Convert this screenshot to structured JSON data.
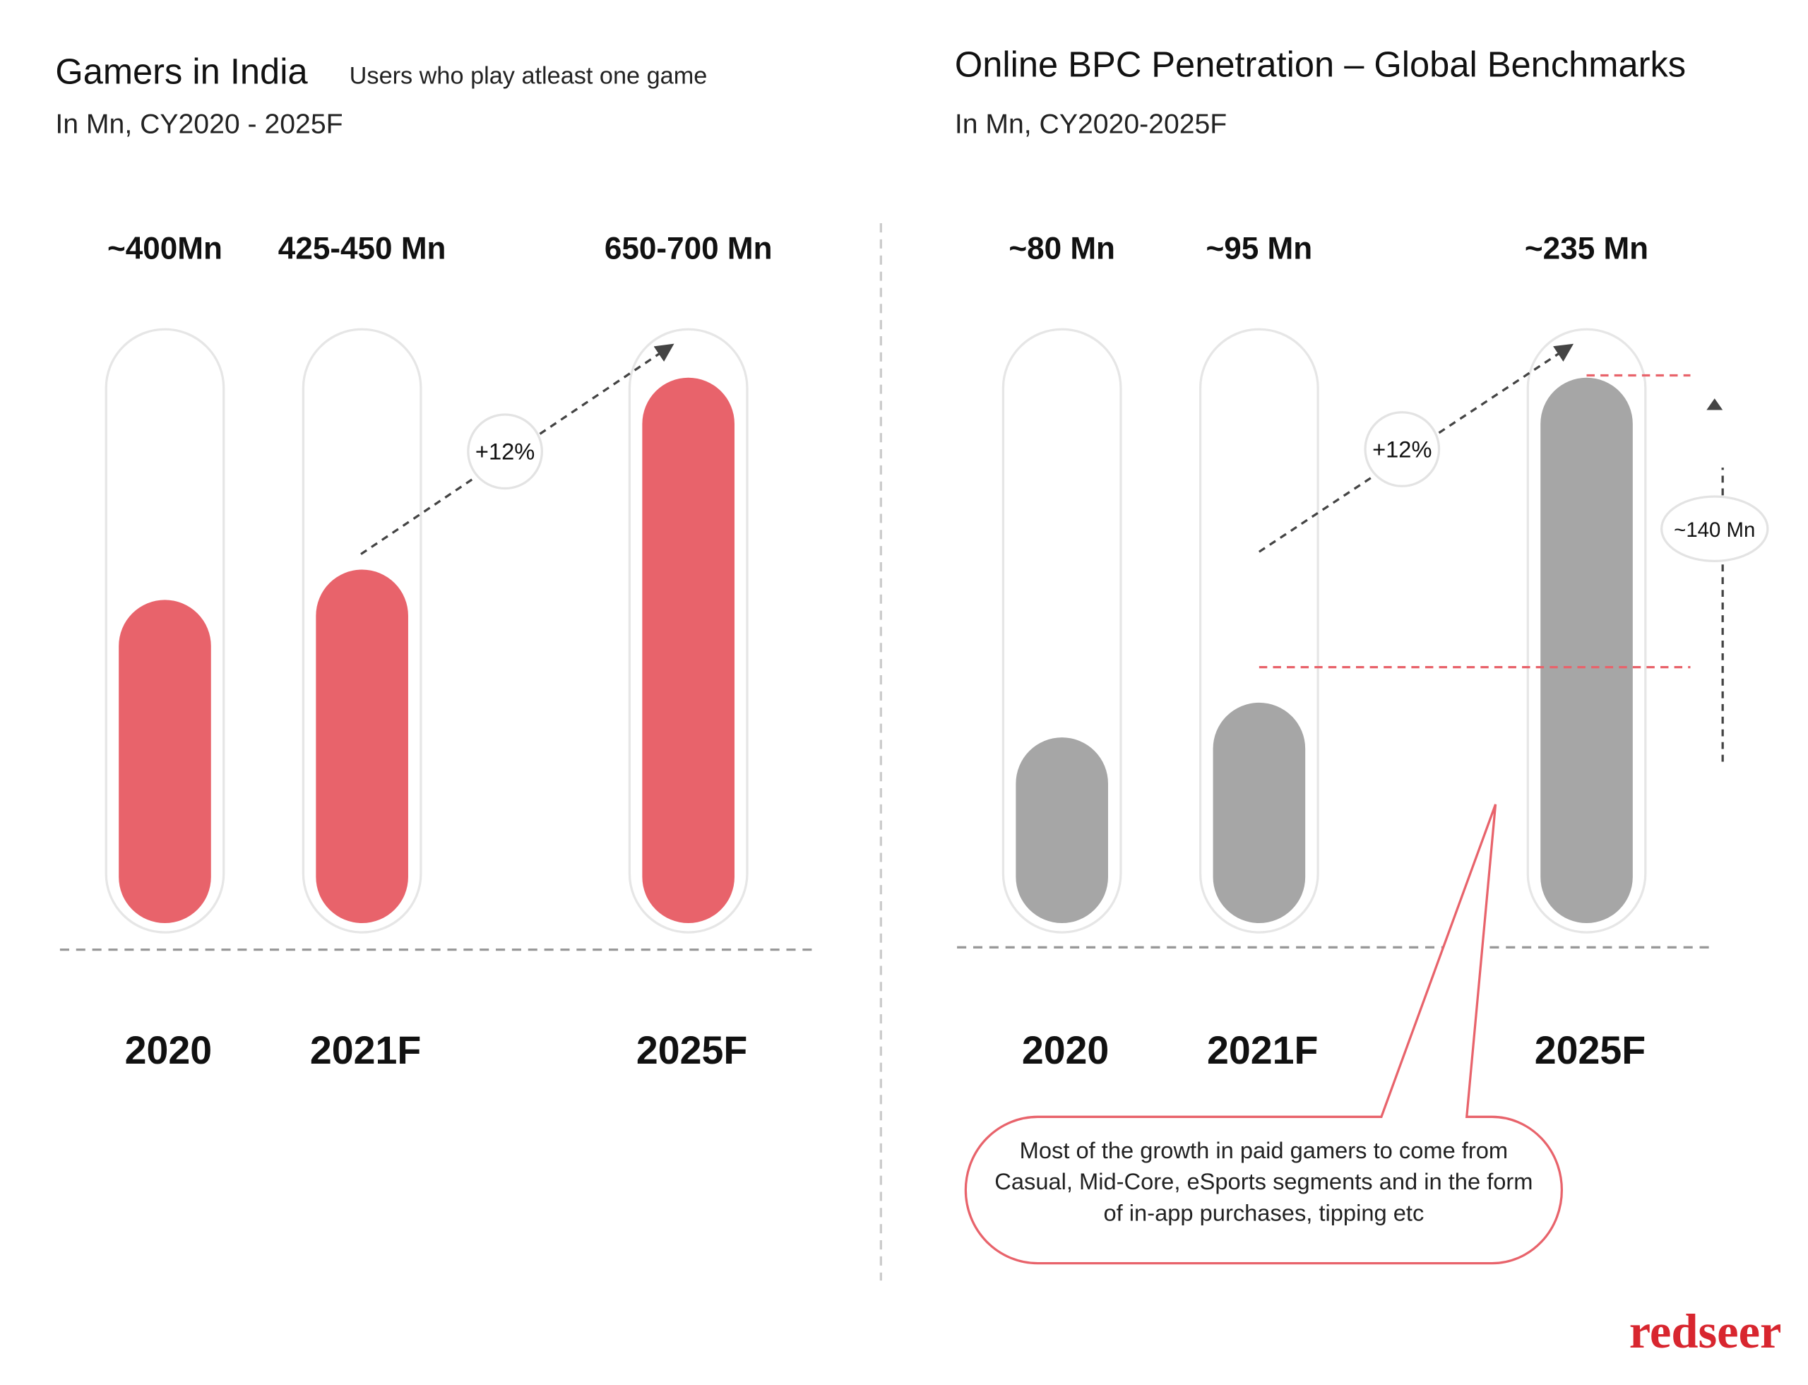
{
  "chart_data": [
    {
      "type": "bar",
      "title": "Gamers in India",
      "title_note": "Users who play atleast one game",
      "subtitle": "In Mn, CY2020 - 2025F",
      "categories": [
        "2020",
        "2021F",
        "2025F"
      ],
      "values": [
        400,
        437.5,
        675
      ],
      "value_labels": [
        "~400Mn",
        "425-450 Mn",
        "650-700 Mn"
      ],
      "color": "#e8636b",
      "annotations": [
        "+12%"
      ]
    },
    {
      "type": "bar",
      "title": "Online BPC Penetration – Global Benchmarks",
      "subtitle": "In Mn, CY2020-2025F",
      "categories": [
        "2020",
        "2021F",
        "2025F"
      ],
      "values": [
        80,
        95,
        235
      ],
      "value_labels": [
        "~80 Mn",
        "~95 Mn",
        "~235 Mn"
      ],
      "color": "#a6a6a6",
      "annotations": [
        "+12%",
        "~140 Mn",
        "Most of the growth in paid gamers to come from Casual, Mid-Core, eSports segments and in the form of in-app purchases, tipping etc"
      ]
    }
  ],
  "logo": "redseer"
}
